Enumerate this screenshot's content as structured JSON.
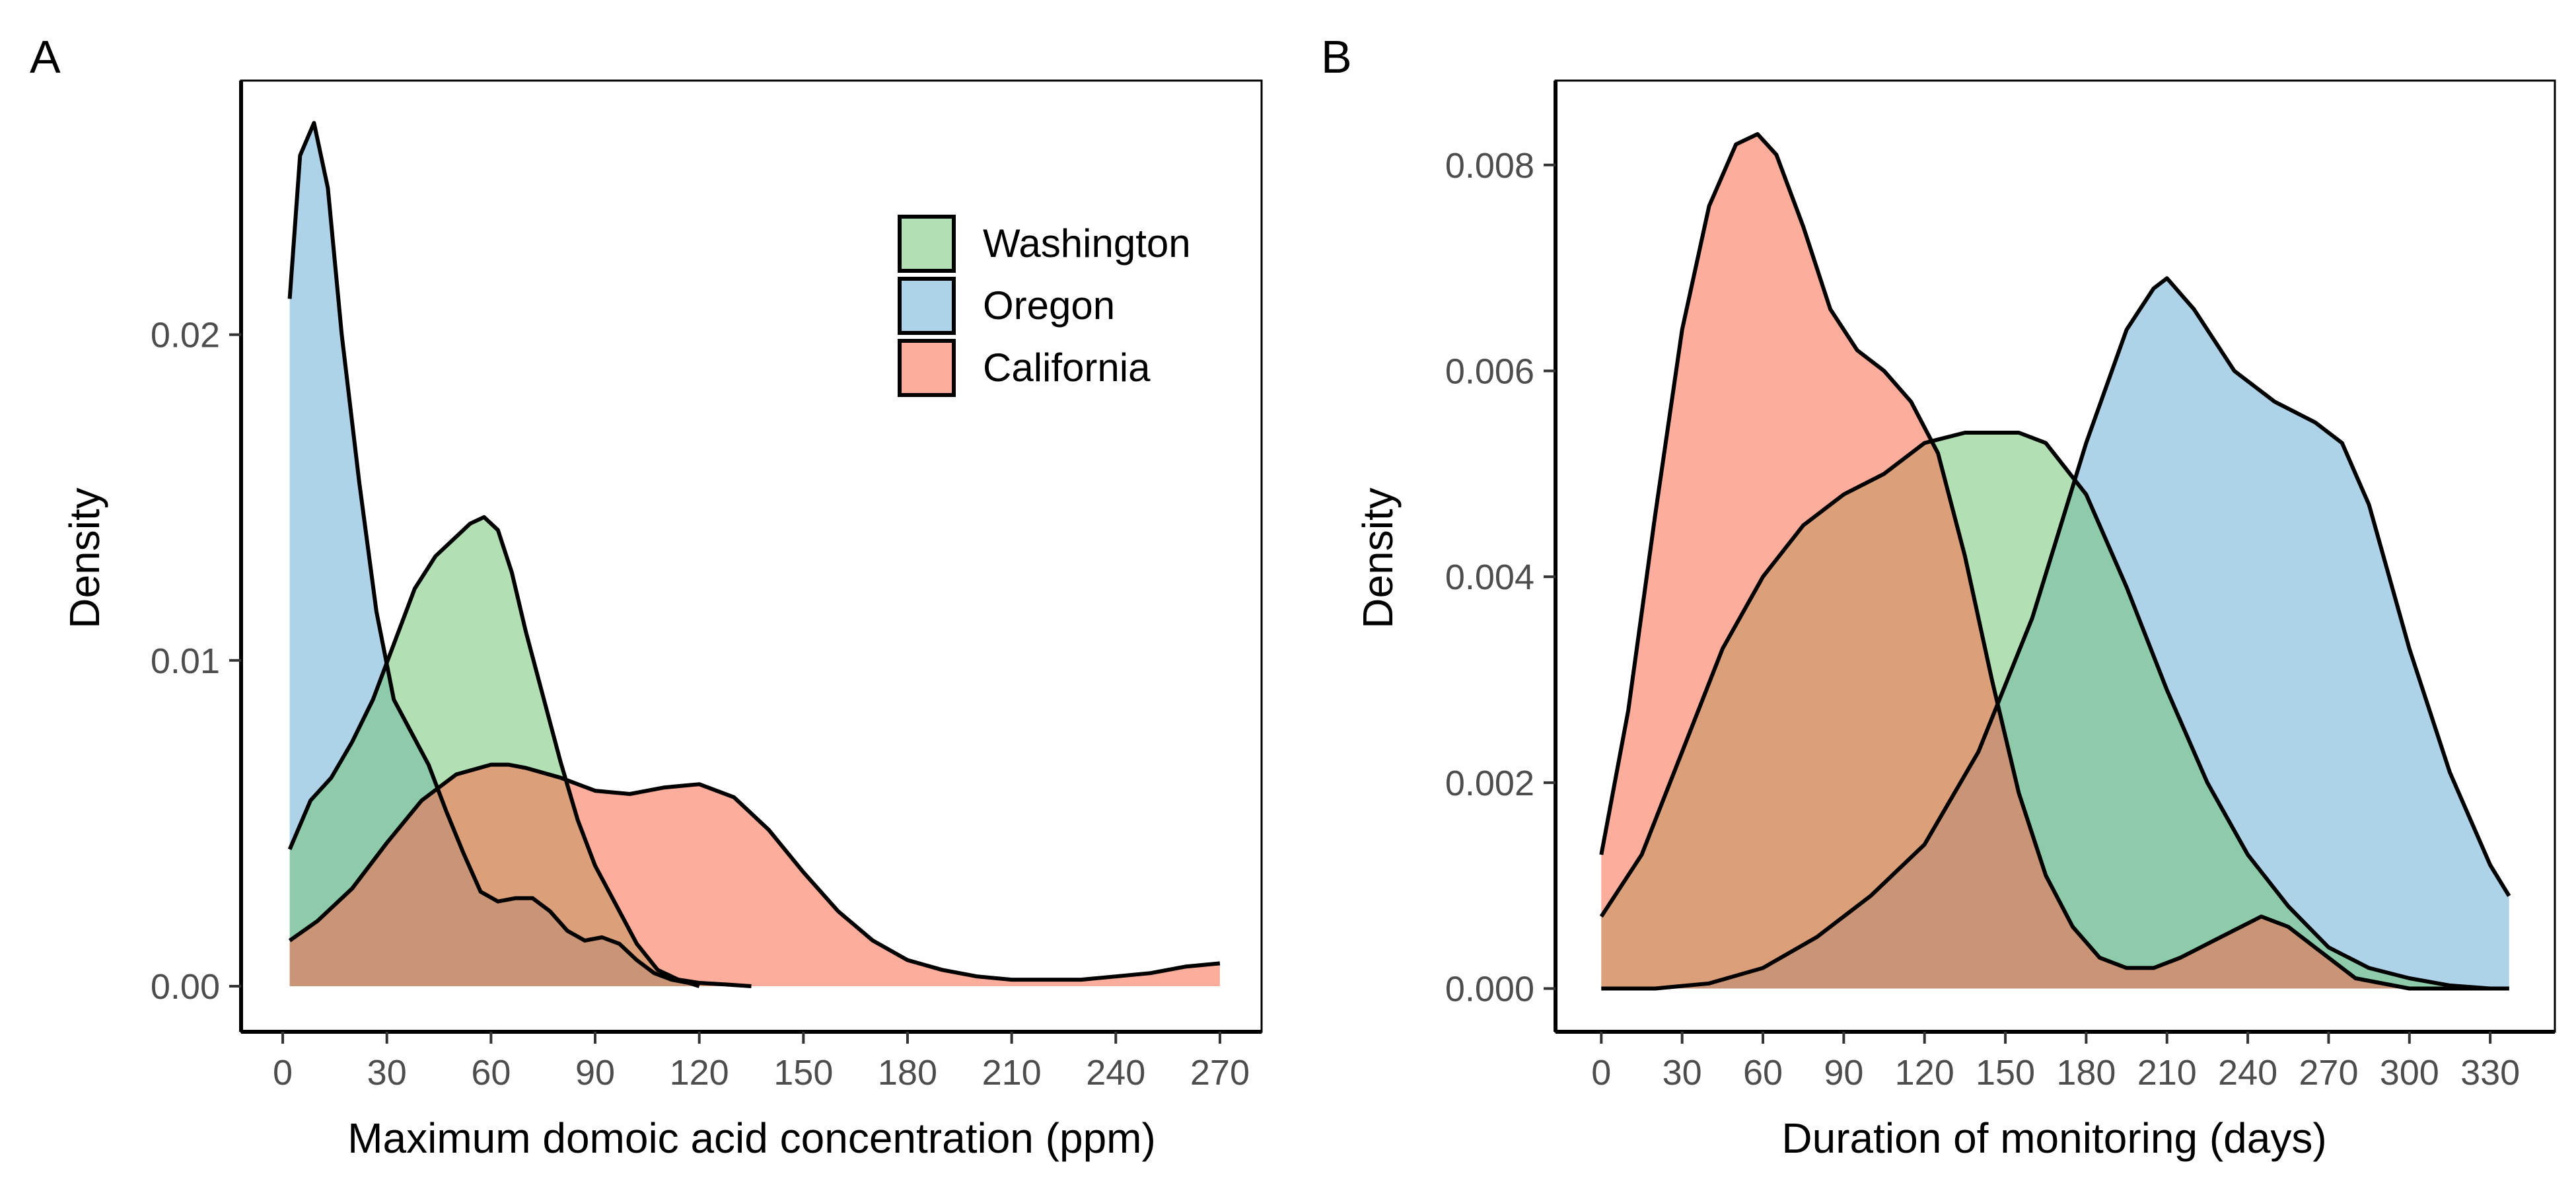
{
  "colors": {
    "Washington": "#74c476",
    "Oregon": "#6baed6",
    "California": "#fb6a4a"
  },
  "chart_data": [
    {
      "panel_label": "A",
      "type": "area",
      "xlabel": "Maximum domoic acid concentration (ppm)",
      "ylabel": "Density",
      "xlim": [
        -12,
        282
      ],
      "ylim": [
        -0.0014,
        0.0278
      ],
      "x_ticks": [
        0,
        30,
        60,
        90,
        120,
        150,
        180,
        210,
        240,
        270
      ],
      "x_tick_labels": [
        "0",
        "30",
        "60",
        "90",
        "120",
        "150",
        "180",
        "210",
        "240",
        "270"
      ],
      "y_ticks": [
        0,
        0.01,
        0.02
      ],
      "y_tick_labels": [
        "0.00",
        "0.01",
        "0.02"
      ],
      "legend": {
        "placement": "top-right",
        "entries": [
          "Washington",
          "Oregon",
          "California"
        ]
      },
      "grid": false,
      "series": [
        {
          "name": "Oregon",
          "x": [
            2,
            5,
            9,
            13,
            17,
            22,
            27,
            32,
            37,
            42,
            47,
            52,
            57,
            62,
            67,
            72,
            77,
            82,
            87,
            92,
            97,
            102,
            107,
            112,
            117,
            120
          ],
          "y": [
            0.0211,
            0.0255,
            0.0265,
            0.0245,
            0.02,
            0.0155,
            0.0115,
            0.0088,
            0.0078,
            0.0068,
            0.0054,
            0.0041,
            0.0029,
            0.0026,
            0.0027,
            0.0027,
            0.0023,
            0.0017,
            0.0014,
            0.0015,
            0.0013,
            0.0008,
            0.0004,
            0.0002,
            0.0001,
            0.0
          ]
        },
        {
          "name": "Washington",
          "x": [
            2,
            8,
            14,
            20,
            26,
            32,
            38,
            44,
            50,
            54,
            58,
            62,
            66,
            70,
            75,
            80,
            85,
            90,
            96,
            102,
            108,
            114,
            120,
            128,
            135
          ],
          "y": [
            0.0042,
            0.0057,
            0.0064,
            0.0075,
            0.0088,
            0.0105,
            0.0122,
            0.0132,
            0.0138,
            0.0142,
            0.0144,
            0.014,
            0.0127,
            0.0109,
            0.0089,
            0.0069,
            0.0051,
            0.0037,
            0.0025,
            0.0013,
            0.0005,
            0.0002,
            0.0001,
            5e-05,
            0.0
          ]
        },
        {
          "name": "California",
          "x": [
            2,
            10,
            20,
            30,
            40,
            50,
            60,
            65,
            70,
            80,
            90,
            100,
            110,
            120,
            130,
            140,
            150,
            160,
            170,
            180,
            190,
            200,
            210,
            220,
            230,
            240,
            250,
            260,
            270
          ],
          "y": [
            0.0014,
            0.002,
            0.003,
            0.0044,
            0.0057,
            0.0065,
            0.0068,
            0.0068,
            0.0067,
            0.0064,
            0.006,
            0.0059,
            0.0061,
            0.0062,
            0.0058,
            0.0048,
            0.0035,
            0.0023,
            0.0014,
            0.0008,
            0.0005,
            0.0003,
            0.0002,
            0.0002,
            0.0002,
            0.0003,
            0.0004,
            0.0006,
            0.0007
          ]
        }
      ]
    },
    {
      "panel_label": "B",
      "type": "area",
      "xlabel": "Duration of monitoring (days)",
      "ylabel": "Density",
      "xlim": [
        -17,
        354
      ],
      "ylim": [
        -0.00042,
        0.00882
      ],
      "x_ticks": [
        0,
        30,
        60,
        90,
        120,
        150,
        180,
        210,
        240,
        270,
        300,
        330
      ],
      "x_tick_labels": [
        "0",
        "30",
        "60",
        "90",
        "120",
        "150",
        "180",
        "210",
        "240",
        "270",
        "300",
        "330"
      ],
      "y_ticks": [
        0,
        0.002,
        0.004,
        0.006,
        0.008
      ],
      "y_tick_labels": [
        "0.000",
        "0.002",
        "0.004",
        "0.006",
        "0.008"
      ],
      "legend": null,
      "grid": false,
      "series": [
        {
          "name": "Oregon",
          "x": [
            0,
            20,
            40,
            60,
            80,
            100,
            120,
            140,
            160,
            180,
            195,
            205,
            210,
            220,
            235,
            250,
            265,
            275,
            285,
            300,
            315,
            330,
            337
          ],
          "y": [
            0.0,
            0.0,
            5e-05,
            0.0002,
            0.0005,
            0.0009,
            0.0014,
            0.0023,
            0.0036,
            0.0053,
            0.0064,
            0.0068,
            0.0069,
            0.0066,
            0.006,
            0.0057,
            0.0055,
            0.0053,
            0.0047,
            0.0033,
            0.0021,
            0.0012,
            0.0009
          ]
        },
        {
          "name": "Washington",
          "x": [
            0,
            15,
            30,
            45,
            60,
            75,
            90,
            105,
            120,
            135,
            145,
            155,
            165,
            180,
            195,
            210,
            225,
            240,
            255,
            270,
            285,
            300,
            315,
            330,
            337
          ],
          "y": [
            0.0007,
            0.0013,
            0.0023,
            0.0033,
            0.004,
            0.0045,
            0.0048,
            0.005,
            0.0053,
            0.0054,
            0.0054,
            0.0054,
            0.0053,
            0.0048,
            0.0039,
            0.0029,
            0.002,
            0.0013,
            0.0008,
            0.0004,
            0.0002,
            0.0001,
            3e-05,
            0.0,
            0.0
          ]
        },
        {
          "name": "California",
          "x": [
            0,
            10,
            20,
            30,
            40,
            50,
            58,
            65,
            75,
            85,
            95,
            105,
            115,
            125,
            135,
            145,
            155,
            165,
            175,
            185,
            195,
            205,
            215,
            230,
            245,
            255,
            265,
            280,
            300,
            320,
            337
          ],
          "y": [
            0.0013,
            0.0027,
            0.0046,
            0.0064,
            0.0076,
            0.0082,
            0.0083,
            0.0081,
            0.0074,
            0.0066,
            0.0062,
            0.006,
            0.0057,
            0.0052,
            0.0042,
            0.003,
            0.0019,
            0.0011,
            0.0006,
            0.0003,
            0.0002,
            0.0002,
            0.0003,
            0.0005,
            0.0007,
            0.0006,
            0.0004,
            0.0001,
            0.0,
            0.0,
            0.0
          ]
        }
      ]
    }
  ]
}
